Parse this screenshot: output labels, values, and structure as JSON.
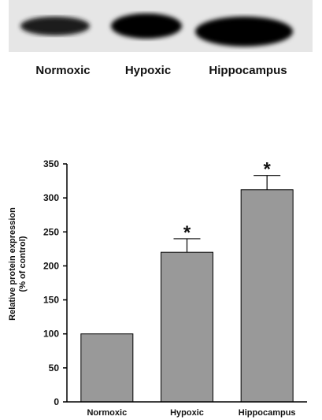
{
  "blot": {
    "labels": [
      "Normoxic",
      "Hypoxic",
      "Hippocampus"
    ]
  },
  "chart_data": {
    "type": "bar",
    "categories": [
      "Normoxic",
      "Hypoxic",
      "Hippocampus"
    ],
    "values": [
      100,
      220,
      312
    ],
    "errors": [
      0,
      20,
      21
    ],
    "significance": [
      "",
      "*",
      "*"
    ],
    "ylabel_lines": [
      "Relative protein expression",
      "(% of control)"
    ],
    "ylim": [
      0,
      350
    ],
    "yticks": [
      0,
      50,
      100,
      150,
      200,
      250,
      300,
      350
    ],
    "bar_color": "#999999",
    "grid": false
  }
}
